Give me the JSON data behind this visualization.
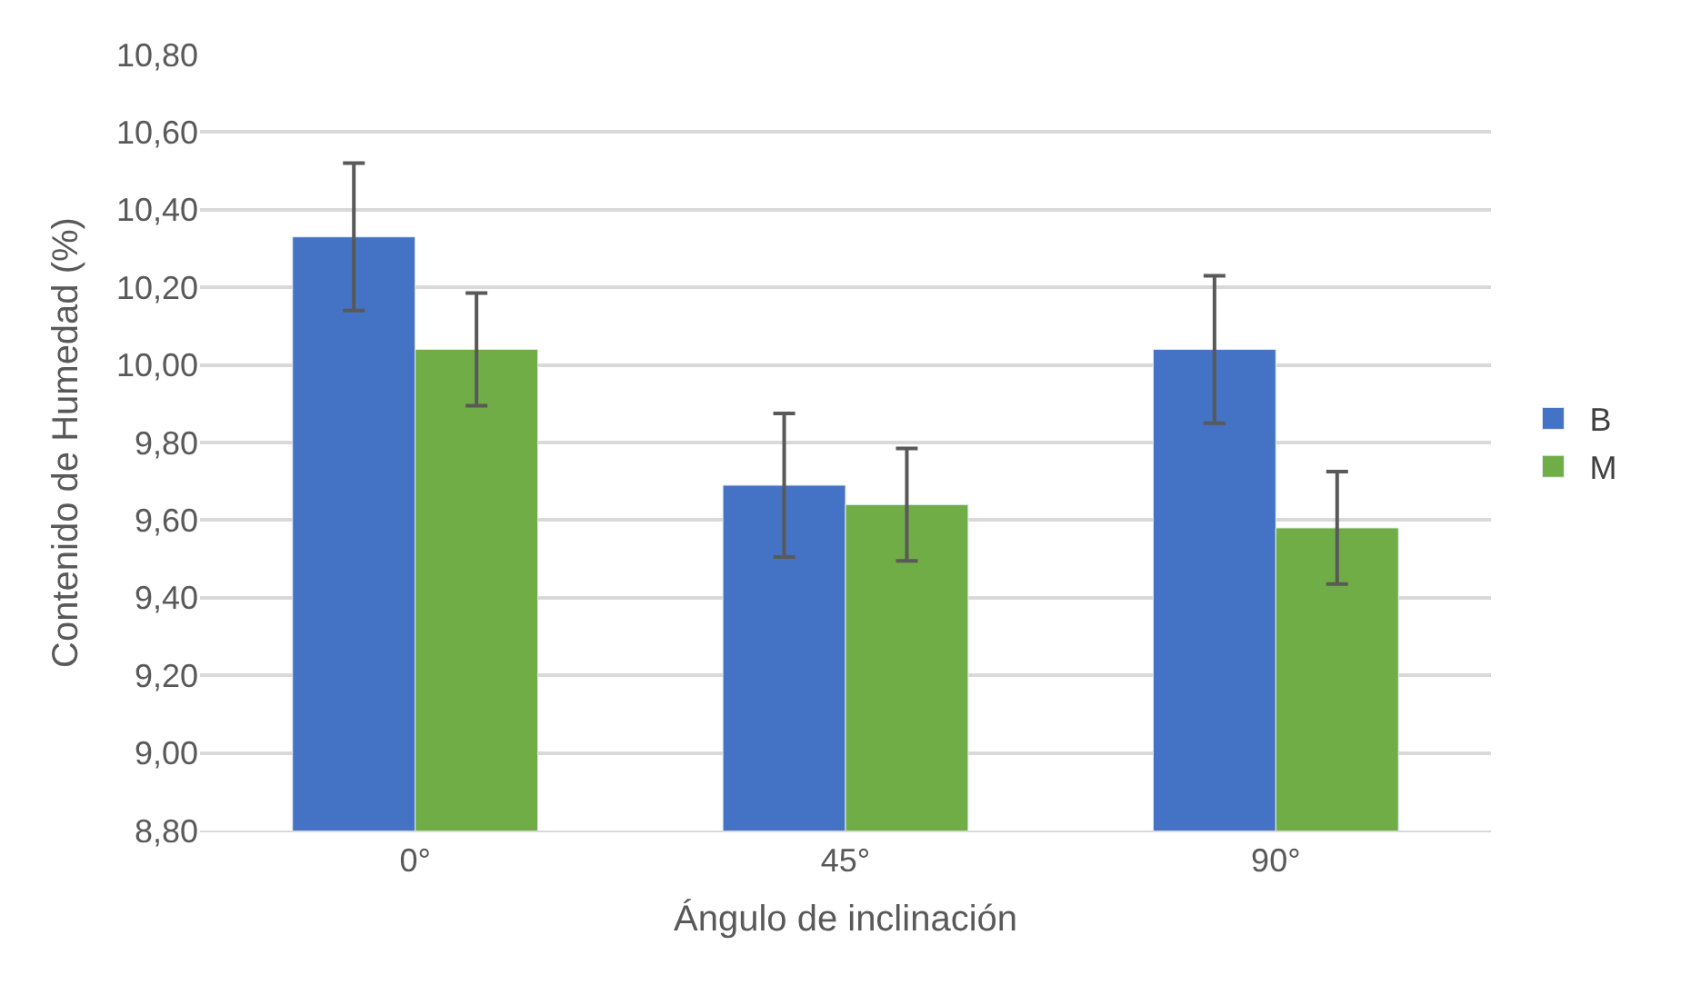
{
  "chart_data": {
    "type": "bar",
    "xlabel": "Ángulo de inclinación",
    "ylabel": "Contenido de Humedad (%)",
    "categories": [
      "0°",
      "45°",
      "90°"
    ],
    "series": [
      {
        "name": "B",
        "color": "#4472c4",
        "values": [
          10.33,
          9.69,
          10.04
        ],
        "errors": [
          0.19,
          0.185,
          0.19
        ]
      },
      {
        "name": "M",
        "color": "#70ad47",
        "values": [
          10.04,
          9.64,
          9.58
        ],
        "errors": [
          0.145,
          0.145,
          0.145
        ]
      }
    ],
    "ylim": [
      8.8,
      10.8
    ],
    "yticks": [
      {
        "value": 8.8,
        "label": "8,80"
      },
      {
        "value": 9.0,
        "label": "9,00"
      },
      {
        "value": 9.2,
        "label": "9,20"
      },
      {
        "value": 9.4,
        "label": "9,40"
      },
      {
        "value": 9.6,
        "label": "9,60"
      },
      {
        "value": 9.8,
        "label": "9,80"
      },
      {
        "value": 10.0,
        "label": "10,00"
      },
      {
        "value": 10.2,
        "label": "10,20"
      },
      {
        "value": 10.4,
        "label": "10,40"
      },
      {
        "value": 10.6,
        "label": "10,60"
      },
      {
        "value": 10.8,
        "label": "10,80"
      }
    ],
    "grid": "y",
    "legend": "right"
  }
}
